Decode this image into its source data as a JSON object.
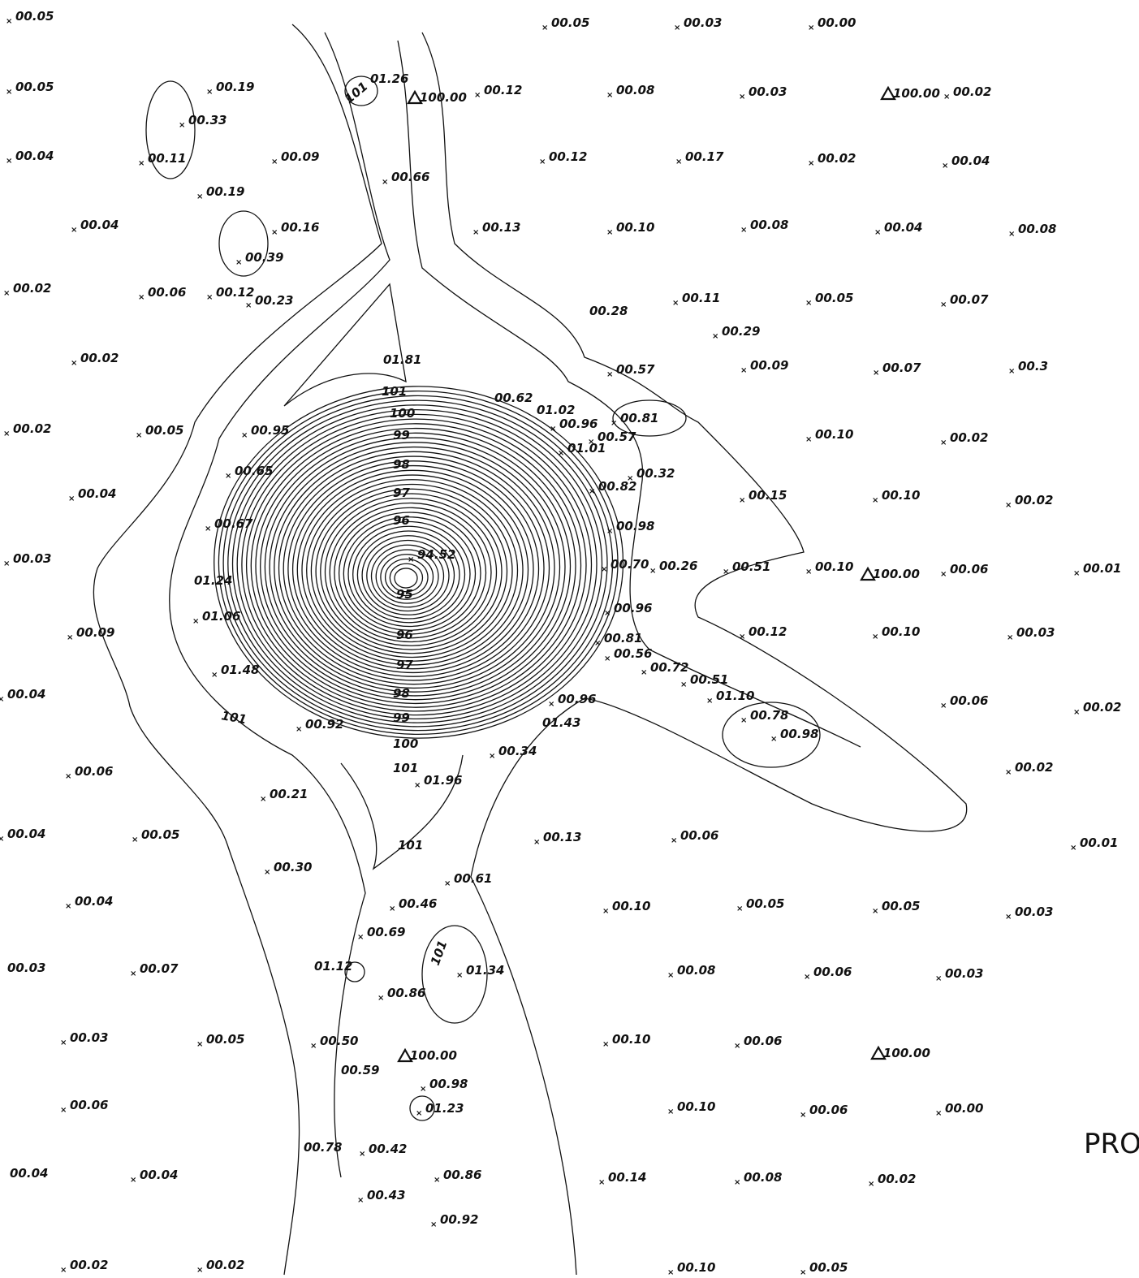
{
  "spot_labels": [
    "00.05",
    "00.05",
    "00.03",
    "00.00",
    "00.05",
    "00.19",
    "01.26",
    "100.00",
    "00.12",
    "00.08",
    "00.03",
    "100.00",
    "00.02",
    "00.33",
    "00.04",
    "00.11",
    "00.09",
    "00.12",
    "00.17",
    "00.02",
    "00.04",
    "00.66",
    "00.19",
    "00.04",
    "00.16",
    "00.13",
    "00.10",
    "00.08",
    "00.04",
    "00.08",
    "00.39",
    "00.02",
    "00.06",
    "00.12",
    "00.23",
    "00.28",
    "00.11",
    "00.05",
    "00.07",
    "00.29",
    "00.02",
    "01.81",
    "00.57",
    "00.09",
    "00.07",
    "00.3",
    "00.62",
    "01.02",
    "00.96",
    "00.81",
    "00.57",
    "01.01",
    "00.02",
    "00.05",
    "00.95",
    "00.10",
    "00.02",
    "00.65",
    "00.32",
    "00.82",
    "00.04",
    "00.15",
    "00.10",
    "00.02",
    "00.67",
    "00.98",
    "94.52",
    "00.03",
    "01.24",
    "00.70",
    "00.26",
    "00.51",
    "00.10",
    "100.00",
    "00.06",
    "00.01",
    "00.96",
    "01.06",
    "00.09",
    "00.12",
    "00.10",
    "00.03",
    "00.81",
    "00.56",
    "00.72",
    "01.48",
    "00.51",
    "00.04",
    "01.10",
    "00.96",
    "00.06",
    "00.02",
    "00.78",
    "00.92",
    "01.43",
    "00.98",
    "00.34",
    "00.06",
    "01.96",
    "00.02",
    "00.21",
    "00.04",
    "00.05",
    "00.13",
    "00.06",
    "00.01",
    "00.30",
    "00.61",
    "00.04",
    "00.46",
    "00.10",
    "00.05",
    "00.05",
    "00.03",
    "00.69",
    "00.03",
    "00.07",
    "01.12",
    "01.34",
    "00.08",
    "00.06",
    "00.03",
    "00.86",
    "00.03",
    "00.05",
    "00.50",
    "00.10",
    "00.06",
    "100.00",
    "100.00",
    "00.59",
    "00.98",
    "00.06",
    "01.23",
    "00.10",
    "00.06",
    "00.00",
    "00.78",
    "00.42",
    "00.86",
    "00.04",
    "00.04",
    "00.14",
    "00.08",
    "00.02",
    "00.43",
    "00.92",
    "00.02",
    "00.02",
    "00.10",
    "00.05"
  ],
  "contour_labels": [
    "101",
    "101",
    "100",
    "99",
    "98",
    "97",
    "96",
    "95",
    "96",
    "97",
    "98",
    "101",
    "99",
    "100",
    "101",
    "101",
    "101"
  ],
  "corner_text": "PRO"
}
